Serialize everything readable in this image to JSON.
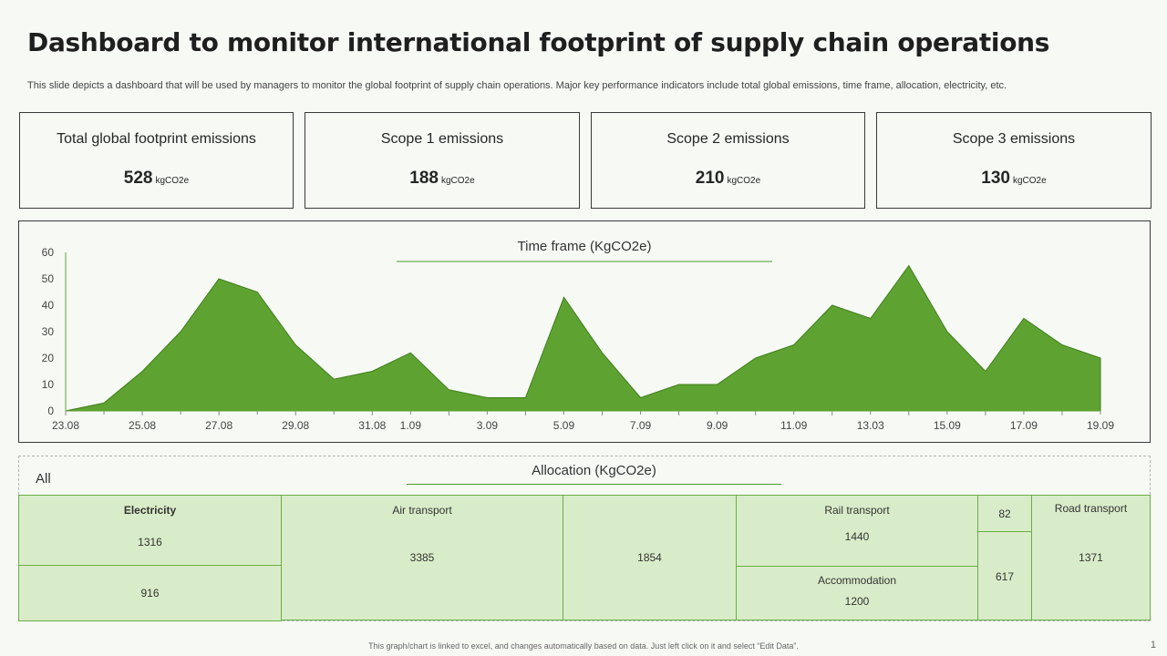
{
  "title": "Dashboard to monitor international footprint of supply chain operations",
  "subtitle": "This slide depicts a dashboard that will be used by managers to monitor the global footprint of supply chain operations. Major key performance indicators include total global emissions, time frame, allocation, electricity, etc.",
  "kpis": [
    {
      "label": "Total global footprint emissions",
      "value": "528",
      "unit": "kgCO2e"
    },
    {
      "label": "Scope 1 emissions",
      "value": "188",
      "unit": "kgCO2e"
    },
    {
      "label": "Scope 2 emissions",
      "value": "210",
      "unit": "kgCO2e"
    },
    {
      "label": "Scope 3 emissions",
      "value": "130",
      "unit": "kgCO2e"
    }
  ],
  "chart_data": {
    "type": "area",
    "title": "Time frame (KgCO2e)",
    "color": "#5ea331",
    "ylim": [
      0,
      60
    ],
    "yticks": [
      0,
      10,
      20,
      30,
      40,
      50,
      60
    ],
    "x_tick_labels": [
      "23.08",
      "25.08",
      "27.08",
      "29.08",
      "31.08",
      "1.09",
      "3.09",
      "5.09",
      "7.09",
      "9.09",
      "11.09",
      "13.03",
      "15.09",
      "17.09",
      "19.09"
    ],
    "values": [
      0,
      3,
      15,
      30,
      50,
      45,
      25,
      12,
      15,
      22,
      8,
      5,
      5,
      43,
      22,
      5,
      10,
      10,
      20,
      25,
      40,
      35,
      55,
      30,
      15,
      35,
      25,
      20
    ]
  },
  "allocation": {
    "filter_label": "All",
    "title": "Allocation (KgCO2e)",
    "cells": [
      {
        "label": "Electricity",
        "value": "1316"
      },
      {
        "label": "",
        "value": "916"
      },
      {
        "label": "Air transport",
        "value": "3385"
      },
      {
        "label": "",
        "value": "1854"
      },
      {
        "label": "Rail transport",
        "value": "1440"
      },
      {
        "label": "Accommodation",
        "value": "1200"
      },
      {
        "label": "",
        "value": "82"
      },
      {
        "label": "",
        "value": "617"
      },
      {
        "label": "Road transport",
        "value": "1371"
      }
    ]
  },
  "footnote": "This graph/chart is linked to excel, and changes automatically based on data. Just left click on it and select “Edit Data”.",
  "page_number": "1"
}
